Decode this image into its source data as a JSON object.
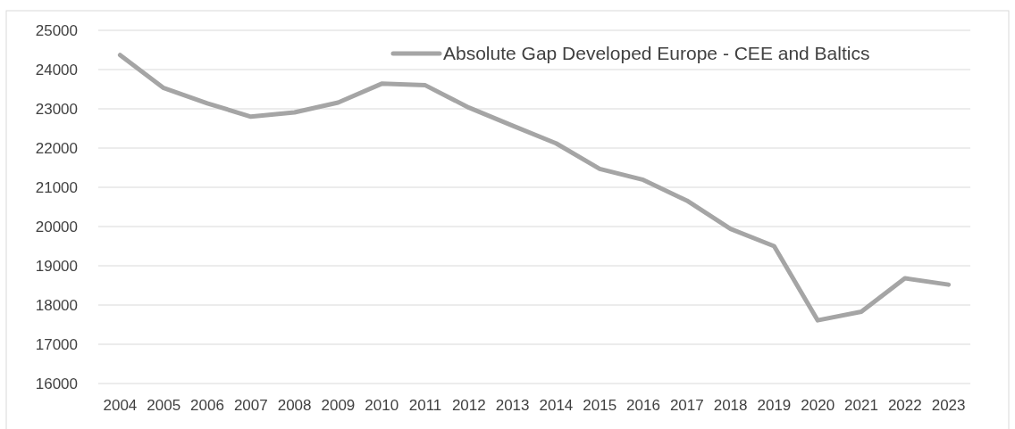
{
  "chart_data": {
    "type": "line",
    "categories": [
      "2004",
      "2005",
      "2006",
      "2007",
      "2008",
      "2009",
      "2010",
      "2011",
      "2012",
      "2013",
      "2014",
      "2015",
      "2016",
      "2017",
      "2018",
      "2019",
      "2020",
      "2021",
      "2022",
      "2023"
    ],
    "series": [
      {
        "name": "Absolute Gap Developed Europe - CEE and Baltics",
        "color": "#a5a5a5",
        "values": [
          24370,
          23530,
          23140,
          22800,
          22910,
          23160,
          23640,
          23600,
          23030,
          22570,
          22120,
          21470,
          21190,
          20660,
          19940,
          19500,
          17610,
          17830,
          18680,
          18520
        ]
      }
    ],
    "ylim": [
      16000,
      25000
    ],
    "yticks": [
      16000,
      17000,
      18000,
      19000,
      20000,
      21000,
      22000,
      23000,
      24000,
      25000
    ],
    "grid": "y",
    "legend": "top right",
    "marker": "none",
    "line_style": "solid"
  }
}
